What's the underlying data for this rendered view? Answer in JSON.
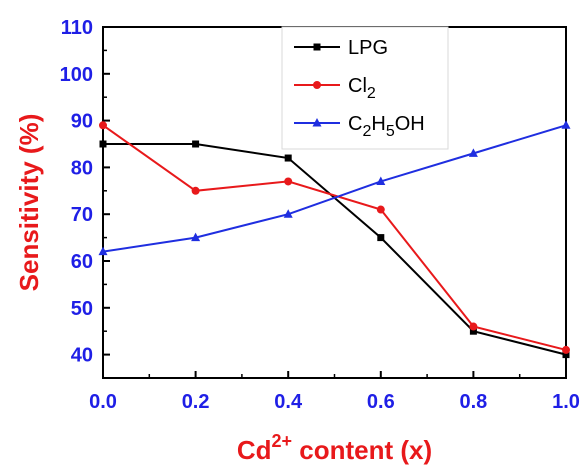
{
  "chart_data": {
    "type": "line",
    "x": [
      0.0,
      0.2,
      0.4,
      0.6,
      0.8,
      1.0
    ],
    "xlim": [
      0.0,
      1.0
    ],
    "ylim": [
      35,
      110
    ],
    "xticks": [
      "0.0",
      "0.2",
      "0.4",
      "0.6",
      "0.8",
      "1.0"
    ],
    "yticks": [
      "40",
      "50",
      "60",
      "70",
      "80",
      "90",
      "100",
      "110"
    ],
    "xlabel": {
      "base": "Cd",
      "sup": "2+",
      "rest": " content (x)"
    },
    "ylabel": "Sensitivity (%)",
    "grid": false,
    "legend_position": "top-center",
    "series": [
      {
        "name": "LPG",
        "name_parts": [
          [
            "LPG",
            ""
          ]
        ],
        "color": "#000000",
        "marker": "square",
        "values": [
          85,
          85,
          82,
          65,
          45,
          40
        ]
      },
      {
        "name": "Cl2",
        "name_parts": [
          [
            "Cl",
            ""
          ],
          [
            "2",
            "sub"
          ]
        ],
        "color": "#e8191b",
        "marker": "circle",
        "values": [
          89,
          75,
          77,
          71,
          46,
          41
        ]
      },
      {
        "name": "C2H5OH",
        "name_parts": [
          [
            "C",
            ""
          ],
          [
            "2",
            "sub"
          ],
          [
            "H",
            ""
          ],
          [
            "5",
            "sub"
          ],
          [
            "OH",
            ""
          ]
        ],
        "color": "#1f2ee0",
        "marker": "triangle",
        "values": [
          62,
          65,
          70,
          77,
          83,
          89
        ]
      }
    ],
    "colors": {
      "tick_labels": "#1f1fe6",
      "x_title": "#e8191b",
      "y_title": "#e8191b",
      "axes": "#000000"
    }
  }
}
